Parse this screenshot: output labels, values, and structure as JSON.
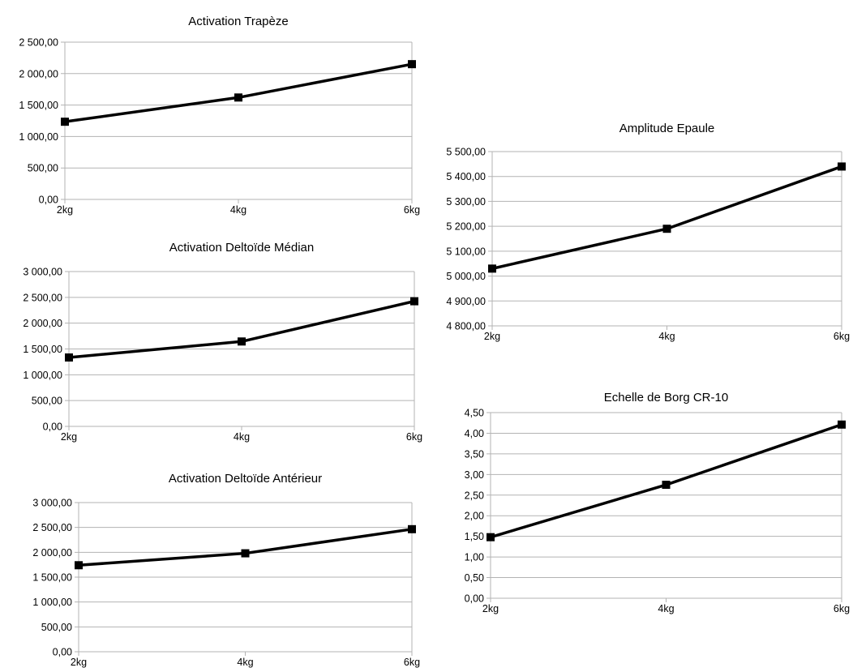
{
  "chart_data": [
    {
      "type": "line",
      "title": "Activation Trapèze",
      "categories": [
        "2kg",
        "4kg",
        "6kg"
      ],
      "values": [
        1235,
        1620,
        2150
      ],
      "ylim": [
        0,
        2500
      ],
      "yticks": [
        0,
        500,
        1000,
        1500,
        2000,
        2500
      ],
      "ytick_labels": [
        "0,00",
        "500,00",
        "1 000,00",
        "1 500,00",
        "2 000,00",
        "2 500,00"
      ],
      "grid": true,
      "line_color": "#000000"
    },
    {
      "type": "line",
      "title": "Activation Deltoïde Médian",
      "categories": [
        "2kg",
        "4kg",
        "6kg"
      ],
      "values": [
        1335,
        1645,
        2425
      ],
      "ylim": [
        0,
        3000
      ],
      "yticks": [
        0,
        500,
        1000,
        1500,
        2000,
        2500,
        3000
      ],
      "ytick_labels": [
        "0,00",
        "500,00",
        "1 000,00",
        "1 500,00",
        "2 000,00",
        "2 500,00",
        "3 000,00"
      ],
      "grid": true,
      "line_color": "#000000"
    },
    {
      "type": "line",
      "title": "Activation Deltoïde Antérieur",
      "categories": [
        "2kg",
        "4kg",
        "6kg"
      ],
      "values": [
        1740,
        1980,
        2465
      ],
      "ylim": [
        0,
        3000
      ],
      "yticks": [
        0,
        500,
        1000,
        1500,
        2000,
        2500,
        3000
      ],
      "ytick_labels": [
        "0,00",
        "500,00",
        "1 000,00",
        "1 500,00",
        "2 000,00",
        "2 500,00",
        "3 000,00"
      ],
      "grid": true,
      "line_color": "#000000"
    },
    {
      "type": "line",
      "title": "Amplitude Epaule",
      "categories": [
        "2kg",
        "4kg",
        "6kg"
      ],
      "values": [
        5030,
        5190,
        5440
      ],
      "ylim": [
        4800,
        5500
      ],
      "yticks": [
        4800,
        4900,
        5000,
        5100,
        5200,
        5300,
        5400,
        5500
      ],
      "ytick_labels": [
        "4 800,00",
        "4 900,00",
        "5 000,00",
        "5 100,00",
        "5 200,00",
        "5 300,00",
        "5 400,00",
        "5 500,00"
      ],
      "grid": true,
      "line_color": "#000000"
    },
    {
      "type": "line",
      "title": "Echelle de Borg CR-10",
      "categories": [
        "2kg",
        "4kg",
        "6kg"
      ],
      "values": [
        1.48,
        2.75,
        4.21
      ],
      "ylim": [
        0,
        4.5
      ],
      "yticks": [
        0,
        0.5,
        1,
        1.5,
        2,
        2.5,
        3,
        3.5,
        4,
        4.5
      ],
      "ytick_labels": [
        "0,00",
        "0,50",
        "1,00",
        "1,50",
        "2,00",
        "2,50",
        "3,00",
        "3,50",
        "4,00",
        "4,50"
      ],
      "grid": true,
      "line_color": "#000000"
    }
  ]
}
